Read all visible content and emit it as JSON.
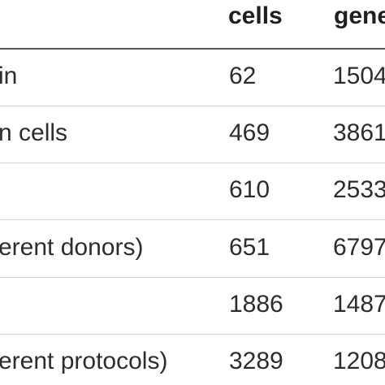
{
  "table": {
    "columns": [
      "cells",
      "genes"
    ],
    "header": {
      "cells_label": "cells",
      "genes_label": "gene"
    },
    "rows": [
      {
        "description": "in",
        "cells": "62",
        "genes": "1504"
      },
      {
        "description": "n cells",
        "cells": "469",
        "genes": "3861"
      },
      {
        "description": "",
        "cells": "610",
        "genes": "2533"
      },
      {
        "description": "erent donors)",
        "cells": "651",
        "genes": "6797"
      },
      {
        "description": "",
        "cells": "1886",
        "genes": "1487"
      },
      {
        "description": "erent protocols)",
        "cells": "3289",
        "genes": "1208"
      }
    ]
  }
}
